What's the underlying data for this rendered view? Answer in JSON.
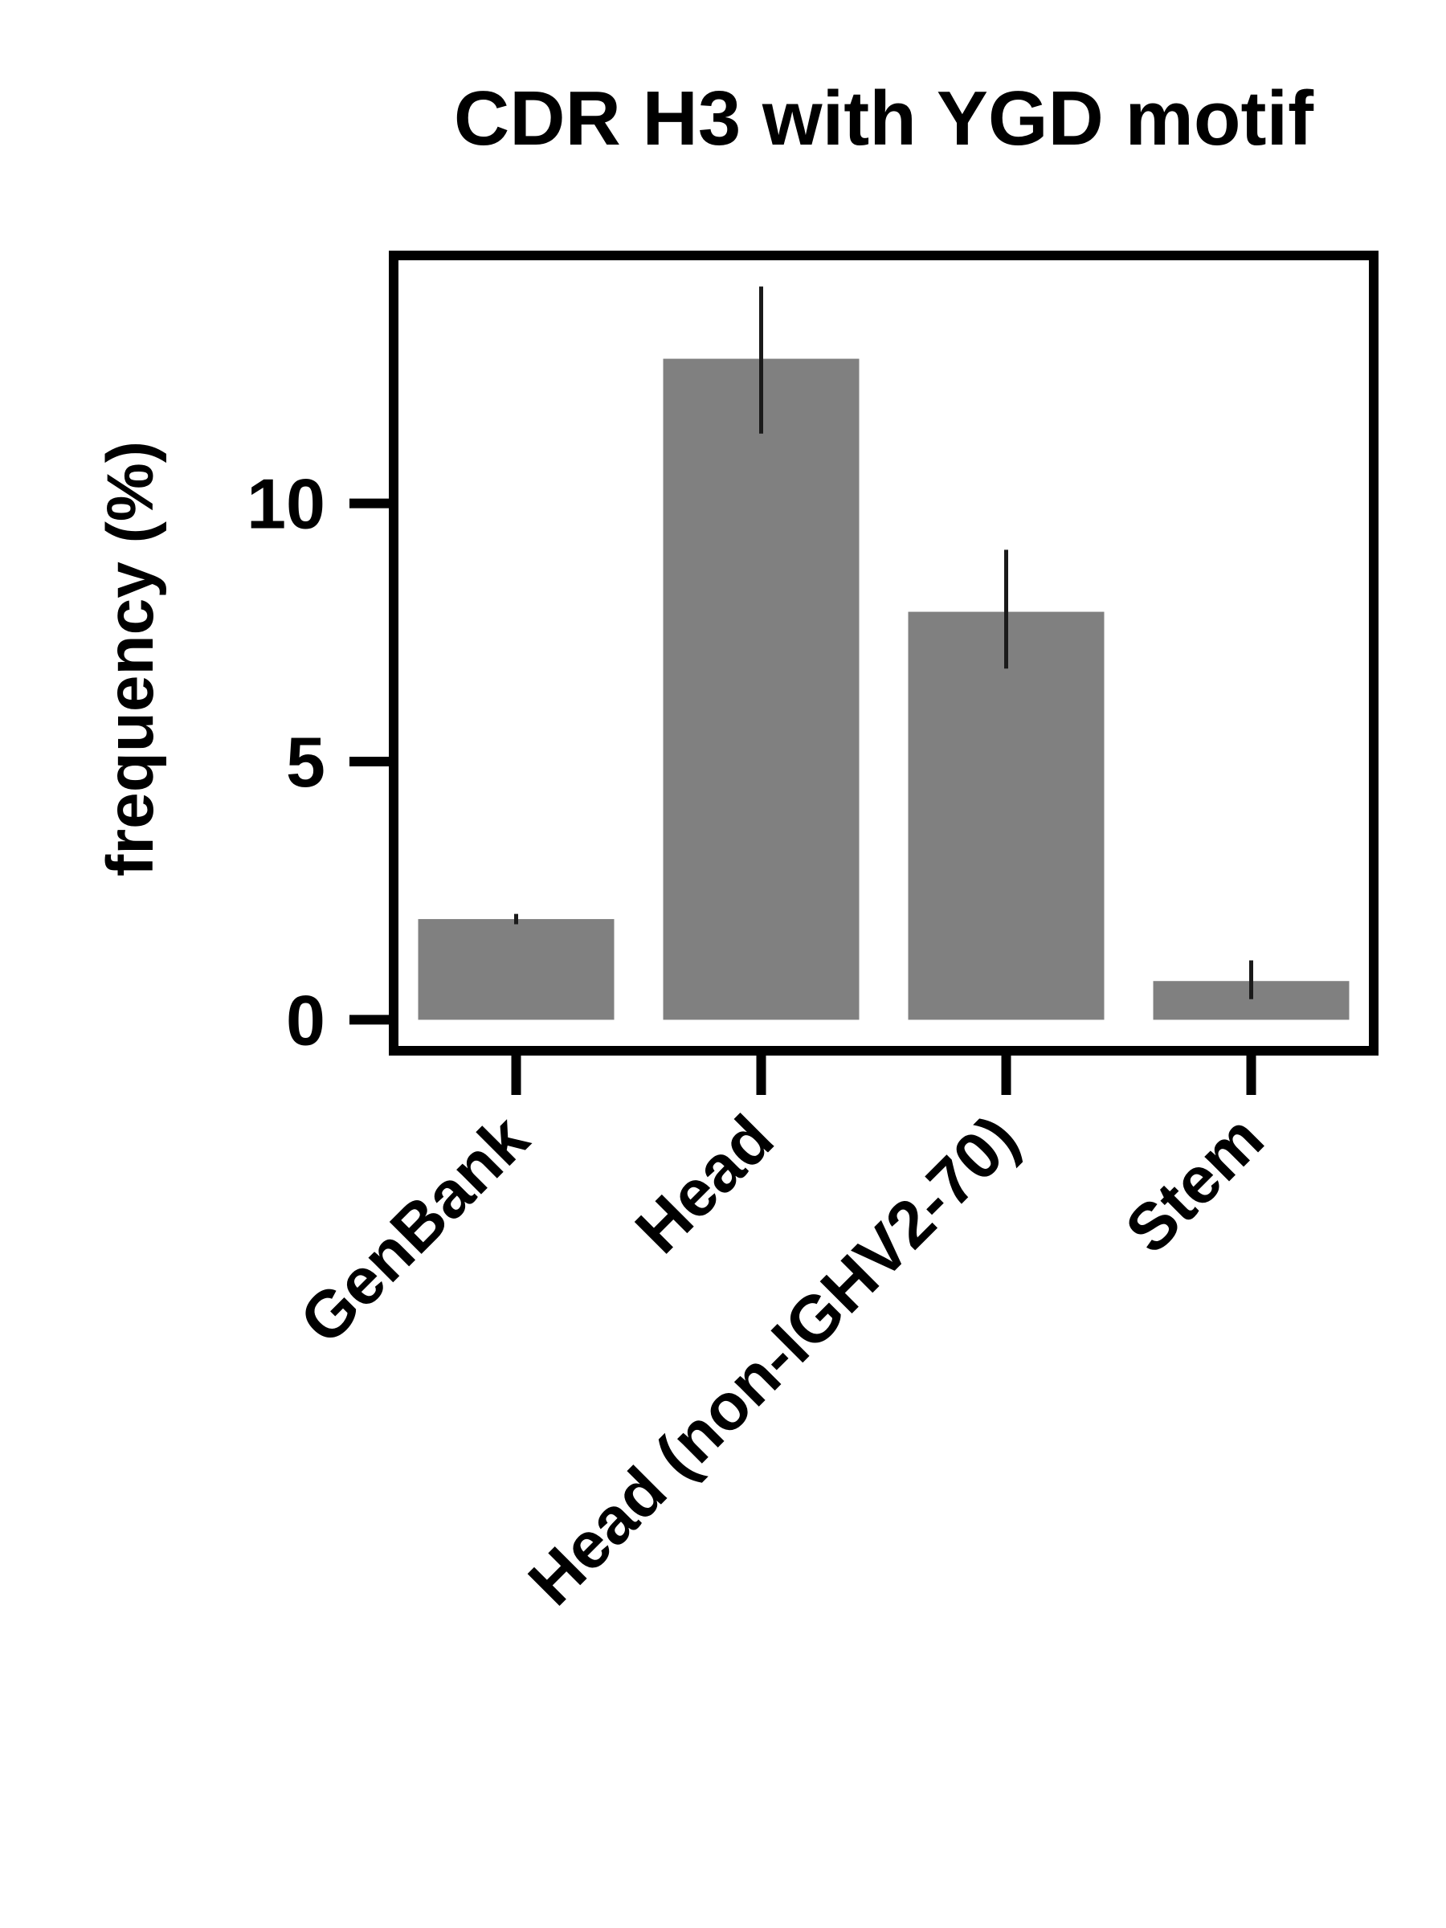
{
  "chart_data": {
    "type": "bar",
    "title": "CDR H3 with YGD motif",
    "xlabel": "",
    "ylabel": "frequency (%)",
    "categories": [
      "GenBank",
      "Head",
      "Head (non-IGHV2-70)",
      "Stem"
    ],
    "values": [
      1.95,
      12.8,
      7.9,
      0.75
    ],
    "error_low": [
      1.85,
      11.35,
      6.8,
      0.4
    ],
    "error_high": [
      2.05,
      14.2,
      9.1,
      1.15
    ],
    "yticks": [
      0,
      5,
      10
    ],
    "ylim": [
      -0.6,
      14.8
    ],
    "grid": false,
    "legend": "none",
    "bar_color": "#808080",
    "error_color": "#1a1a1a",
    "axis_color": "#000000"
  }
}
